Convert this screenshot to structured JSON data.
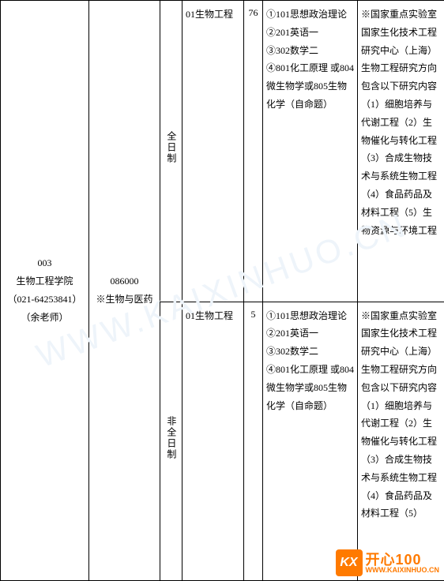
{
  "watermark_text": "WWW.KAIXINHUO.CN",
  "table": {
    "dept": {
      "code": "003",
      "name": "生物工程学院",
      "phone": "（021-64253841）",
      "contact": "（余老师）"
    },
    "major": {
      "code": "086000",
      "name": "※生物与医药"
    },
    "rows": [
      {
        "mode": "全日制",
        "direction": "01生物工程",
        "quota": "76",
        "exams": "①101思想政治理论\n②201英语一\n③302数学二\n④801化工原理 或804微生物学或805生物化学（自命题）",
        "notes": "※国家重点实验室 国家生化技术工程研究中心（上海）生物工程研究方向包含以下研究内容（1）细胞培养与代谢工程（2）生物催化与转化工程（3）合成生物技术与系统生物工程（4）食品药品及材料工程（5）生物资源与环境工程"
      },
      {
        "mode": "非全日制",
        "direction": "01生物工程",
        "quota": "5",
        "exams": "①101思想政治理论\n②201英语一\n③302数学二\n④801化工原理 或804微生物学或805生物化学（自命题）",
        "notes": "※国家重点实验室 国家生化技术工程研究中心（上海）生物工程研究方向包含以下研究内容（1）细胞培养与代谢工程（2）生物催化与转化工程（3）合成生物技术与系统生物工程（4）食品药品及材料工程（5）"
      }
    ]
  },
  "logo": {
    "badge": "KX",
    "cn": "开心100",
    "en": "WWW.KAIXINHUO.CN"
  },
  "colors": {
    "border": "#000000",
    "text": "#000000",
    "background": "#ffffff",
    "watermark": "#eef4fa",
    "logo": "#ff7a00"
  }
}
